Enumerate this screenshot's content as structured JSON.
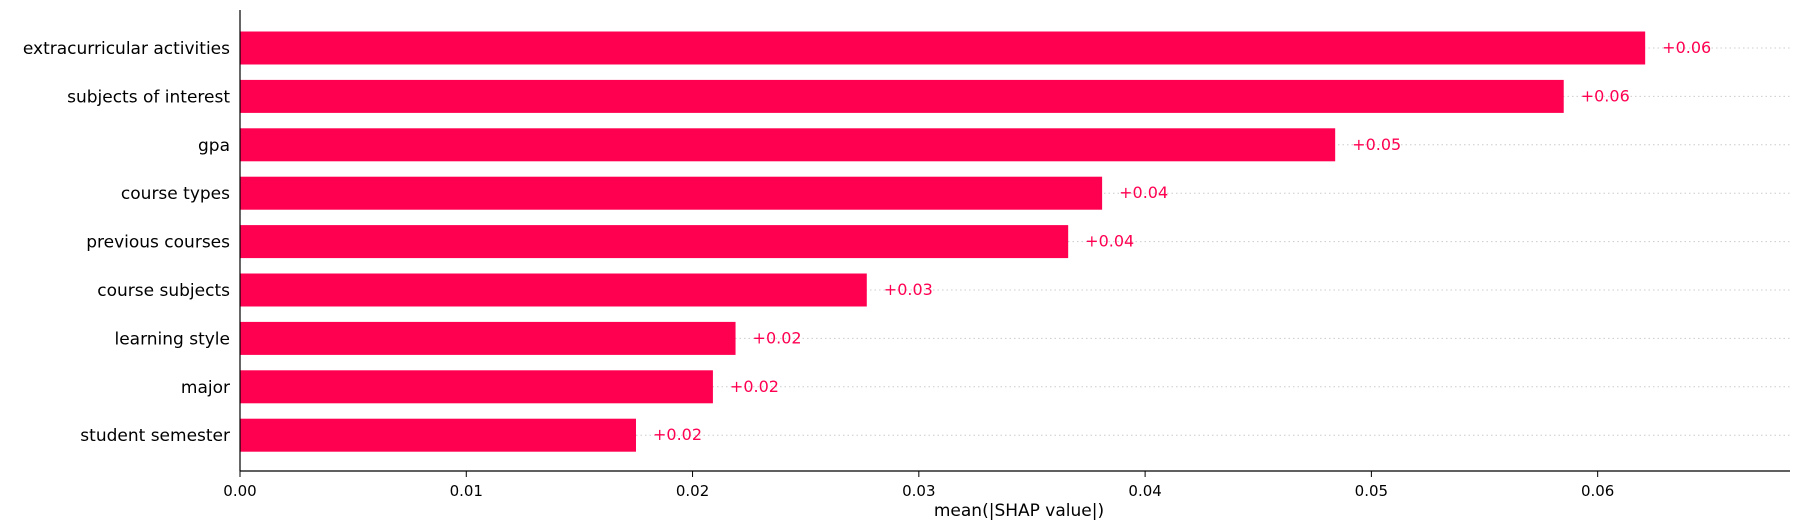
{
  "chart_data": {
    "type": "bar",
    "orientation": "horizontal",
    "categories": [
      "extracurricular activities",
      "subjects of interest",
      "gpa",
      "course types",
      "previous courses",
      "course subjects",
      "learning style",
      "major",
      "student semester"
    ],
    "values": [
      0.0621,
      0.0585,
      0.0484,
      0.0381,
      0.0366,
      0.0277,
      0.0219,
      0.0209,
      0.0175
    ],
    "value_labels": [
      "+0.06",
      "+0.06",
      "+0.05",
      "+0.04",
      "+0.04",
      "+0.03",
      "+0.02",
      "+0.02",
      "+0.02"
    ],
    "xlabel": "mean(|SHAP value|)",
    "ylabel": "",
    "xlim": [
      0,
      0.0685
    ],
    "xticks": [
      0.0,
      0.01,
      0.02,
      0.03,
      0.04,
      0.05,
      0.06
    ],
    "xtick_labels": [
      "0.00",
      "0.01",
      "0.02",
      "0.03",
      "0.04",
      "0.05",
      "0.06"
    ],
    "bar_color": "#ff0051",
    "label_color": "#ff0051",
    "gridlines": "dotted horizontal per row",
    "grid_color": "#cccccc"
  }
}
